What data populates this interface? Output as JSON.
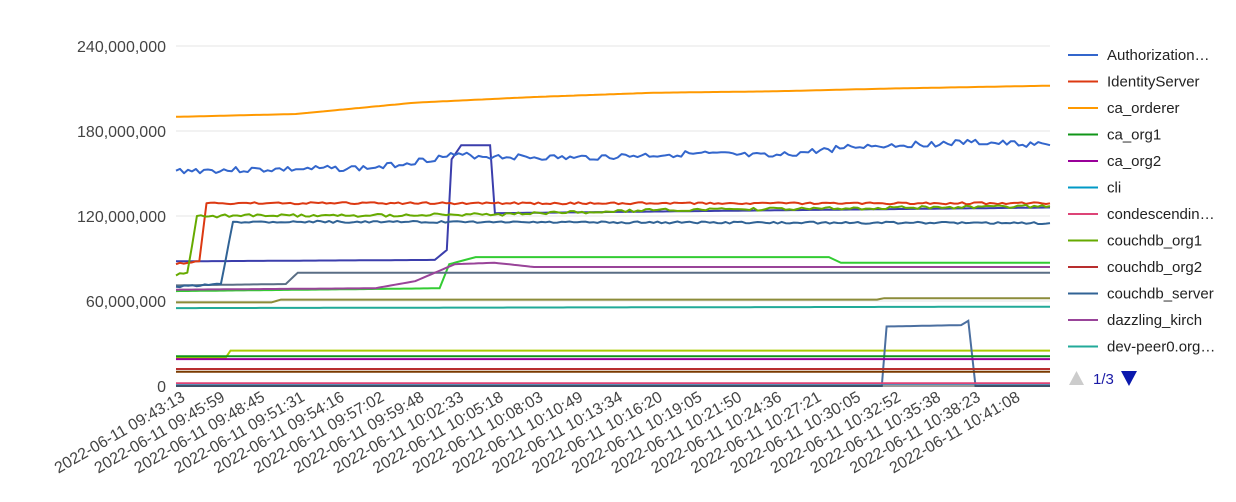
{
  "chart_data": {
    "type": "line",
    "title": "",
    "xlabel": "",
    "ylabel": "",
    "ylim": [
      0,
      240000000
    ],
    "yticks": [
      "0",
      "60,000,000",
      "120,000,000",
      "180,000,000",
      "240,000,000"
    ],
    "yticks_values": [
      0,
      60000000,
      120000000,
      180000000,
      240000000
    ],
    "grid": true,
    "legend_position": "right",
    "x_tick_labels": [
      "2022-06-11 09:43:13",
      "2022-06-11 09:45:59",
      "2022-06-11 09:48:45",
      "2022-06-11 09:51:31",
      "2022-06-11 09:54:16",
      "2022-06-11 09:57:02",
      "2022-06-11 09:59:48",
      "2022-06-11 10:02:33",
      "2022-06-11 10:05:18",
      "2022-06-11 10:08:03",
      "2022-06-11 10:10:49",
      "2022-06-11 10:13:34",
      "2022-06-11 10:16:20",
      "2022-06-11 10:19:05",
      "2022-06-11 10:21:50",
      "2022-06-11 10:24:36",
      "2022-06-11 10:27:21",
      "2022-06-11 10:30:05",
      "2022-06-11 10:32:52",
      "2022-06-11 10:35:38",
      "2022-06-11 10:38:23",
      "2022-06-11 10:41:08"
    ],
    "x_range": [
      "2022-06-11 09:43:13",
      "2022-06-11 10:43:50"
    ],
    "series": [
      {
        "name": "Authorization…",
        "color": "#3366cc",
        "points": [
          [
            "2022-06-11 09:43:13",
            152000000
          ],
          [
            "2022-06-11 09:51:31",
            153000000
          ],
          [
            "2022-06-11 09:57:02",
            154000000
          ],
          [
            "2022-06-11 10:02:33",
            163000000
          ],
          [
            "2022-06-11 10:05:18",
            162000000
          ],
          [
            "2022-06-11 10:10:49",
            161000000
          ],
          [
            "2022-06-11 10:19:05",
            164000000
          ],
          [
            "2022-06-11 10:24:36",
            162000000
          ],
          [
            "2022-06-11 10:30:05",
            169000000
          ],
          [
            "2022-06-11 10:38:23",
            172000000
          ],
          [
            "2022-06-11 10:43:50",
            170000000
          ]
        ]
      },
      {
        "name": "IdentityServer",
        "color": "#dc3912",
        "points": [
          [
            "2022-06-11 09:43:13",
            86000000
          ],
          [
            "2022-06-11 09:44:50",
            88000000
          ],
          [
            "2022-06-11 09:45:20",
            129000000
          ],
          [
            "2022-06-11 10:43:50",
            129000000
          ]
        ]
      },
      {
        "name": "ca_orderer",
        "color": "#ff9900",
        "points": [
          [
            "2022-06-11 09:43:13",
            190000000
          ],
          [
            "2022-06-11 09:51:31",
            192000000
          ],
          [
            "2022-06-11 09:59:48",
            200000000
          ],
          [
            "2022-06-11 10:08:03",
            204000000
          ],
          [
            "2022-06-11 10:16:20",
            207000000
          ],
          [
            "2022-06-11 10:24:36",
            208000000
          ],
          [
            "2022-06-11 10:32:52",
            210000000
          ],
          [
            "2022-06-11 10:43:50",
            212000000
          ]
        ]
      },
      {
        "name": "ca_org1",
        "color": "#109618",
        "points": [
          [
            "2022-06-11 09:43:13",
            21000000
          ],
          [
            "2022-06-11 10:43:50",
            21000000
          ]
        ]
      },
      {
        "name": "ca_org2",
        "color": "#990099",
        "points": [
          [
            "2022-06-11 09:43:13",
            19000000
          ],
          [
            "2022-06-11 10:43:50",
            19000000
          ]
        ]
      },
      {
        "name": "cli",
        "color": "#0099c6",
        "points": [
          [
            "2022-06-11 09:43:13",
            1500000
          ],
          [
            "2022-06-11 10:43:50",
            1500000
          ]
        ]
      },
      {
        "name": "condescendin…",
        "color": "#dd4477",
        "points": [
          [
            "2022-06-11 09:43:13",
            2000000
          ],
          [
            "2022-06-11 10:43:50",
            2000000
          ]
        ]
      },
      {
        "name": "couchdb_org1",
        "color": "#66aa00",
        "points": [
          [
            "2022-06-11 09:43:13",
            78000000
          ],
          [
            "2022-06-11 09:44:00",
            80000000
          ],
          [
            "2022-06-11 09:44:40",
            120000000
          ],
          [
            "2022-06-11 10:05:18",
            121000000
          ],
          [
            "2022-06-11 10:16:20",
            124000000
          ],
          [
            "2022-06-11 10:43:50",
            127000000
          ]
        ]
      },
      {
        "name": "couchdb_org2",
        "color": "#b82e2e",
        "points": [
          [
            "2022-06-11 09:43:13",
            12000000
          ],
          [
            "2022-06-11 10:43:50",
            12000000
          ]
        ]
      },
      {
        "name": "couchdb_server",
        "color": "#316395",
        "points": [
          [
            "2022-06-11 09:43:13",
            70000000
          ],
          [
            "2022-06-11 09:46:20",
            72000000
          ],
          [
            "2022-06-11 09:47:10",
            116000000
          ],
          [
            "2022-06-11 10:43:50",
            115000000
          ]
        ]
      },
      {
        "name": "dazzling_kirch",
        "color": "#994499",
        "points": [
          [
            "2022-06-11 09:43:13",
            68000000
          ],
          [
            "2022-06-11 09:57:02",
            69000000
          ],
          [
            "2022-06-11 09:59:48",
            74000000
          ],
          [
            "2022-06-11 10:02:33",
            86000000
          ],
          [
            "2022-06-11 10:05:18",
            87000000
          ],
          [
            "2022-06-11 10:08:03",
            84000000
          ],
          [
            "2022-06-11 10:43:50",
            84000000
          ]
        ]
      },
      {
        "name": "dev-peer0.org…",
        "color": "#22aa99",
        "points": [
          [
            "2022-06-11 09:43:13",
            55000000
          ],
          [
            "2022-06-11 10:43:50",
            56000000
          ]
        ]
      }
    ],
    "legend_pager": {
      "text": "1/3"
    }
  }
}
